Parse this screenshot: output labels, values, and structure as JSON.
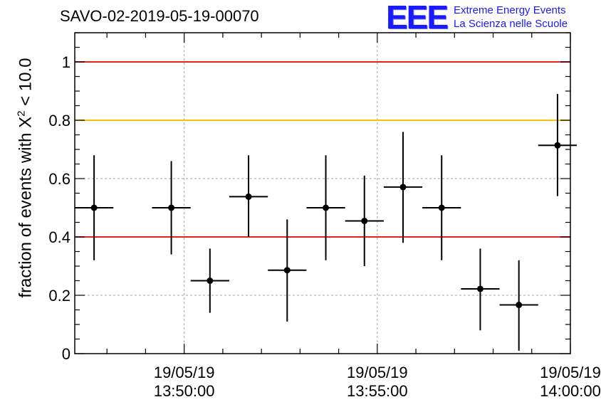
{
  "title": "SAVO-02-2019-05-19-00070",
  "logo": {
    "mark": "EEE",
    "line1": "Extreme Energy Events",
    "line2": "La Scienza nelle Scuole"
  },
  "colors": {
    "red_line": "#e8201c",
    "yellow_line": "#f5c400",
    "points": "#000000",
    "grid": "#a0a0a0"
  },
  "chart_data": {
    "type": "scatter",
    "title": "SAVO-02-2019-05-19-00070",
    "ylabel": "fraction of events with X2 < 10.0",
    "ylabel_parts": {
      "pre": "fraction of events with X",
      "sup": "2",
      "post": " < 10.0"
    },
    "ylim": [
      0,
      1.1
    ],
    "yticks": [
      0,
      0.2,
      0.4,
      0.6,
      0.8,
      1
    ],
    "ytick_labels": [
      "0",
      "0.2",
      "0.4",
      "0.6",
      "0.8",
      "1"
    ],
    "xlim": [
      "13:47:10",
      "14:00:00"
    ],
    "xticks": [
      {
        "time": "13:50:00",
        "line1": "19/05/19",
        "line2": "13:50:00"
      },
      {
        "time": "13:55:00",
        "line1": "19/05/19",
        "line2": "13:55:00"
      },
      {
        "time": "14:00:00",
        "line1": "19/05/19",
        "line2": "14:00:00"
      }
    ],
    "grid": true,
    "hlines": [
      {
        "y": 1.0,
        "color": "#e8201c"
      },
      {
        "y": 0.8,
        "color": "#f5c400"
      },
      {
        "y": 0.4,
        "color": "#e8201c"
      }
    ],
    "points": [
      {
        "x": "13:47:40",
        "y": 0.5,
        "xerr_s": 30,
        "ylo": 0.32,
        "yhi": 0.68
      },
      {
        "x": "13:49:40",
        "y": 0.5,
        "xerr_s": 30,
        "ylo": 0.34,
        "yhi": 0.66
      },
      {
        "x": "13:50:40",
        "y": 0.25,
        "xerr_s": 30,
        "ylo": 0.14,
        "yhi": 0.36
      },
      {
        "x": "13:51:40",
        "y": 0.538,
        "xerr_s": 30,
        "ylo": 0.4,
        "yhi": 0.68
      },
      {
        "x": "13:52:40",
        "y": 0.286,
        "xerr_s": 30,
        "ylo": 0.11,
        "yhi": 0.46
      },
      {
        "x": "13:53:40",
        "y": 0.5,
        "xerr_s": 30,
        "ylo": 0.32,
        "yhi": 0.68
      },
      {
        "x": "13:54:40",
        "y": 0.455,
        "xerr_s": 30,
        "ylo": 0.3,
        "yhi": 0.61
      },
      {
        "x": "13:55:40",
        "y": 0.571,
        "xerr_s": 30,
        "ylo": 0.38,
        "yhi": 0.76
      },
      {
        "x": "13:56:40",
        "y": 0.5,
        "xerr_s": 30,
        "ylo": 0.32,
        "yhi": 0.68
      },
      {
        "x": "13:57:40",
        "y": 0.222,
        "xerr_s": 30,
        "ylo": 0.08,
        "yhi": 0.36
      },
      {
        "x": "13:58:40",
        "y": 0.167,
        "xerr_s": 30,
        "ylo": 0.01,
        "yhi": 0.32
      },
      {
        "x": "13:59:40",
        "y": 0.714,
        "xerr_s": 30,
        "ylo": 0.54,
        "yhi": 0.89
      }
    ]
  }
}
